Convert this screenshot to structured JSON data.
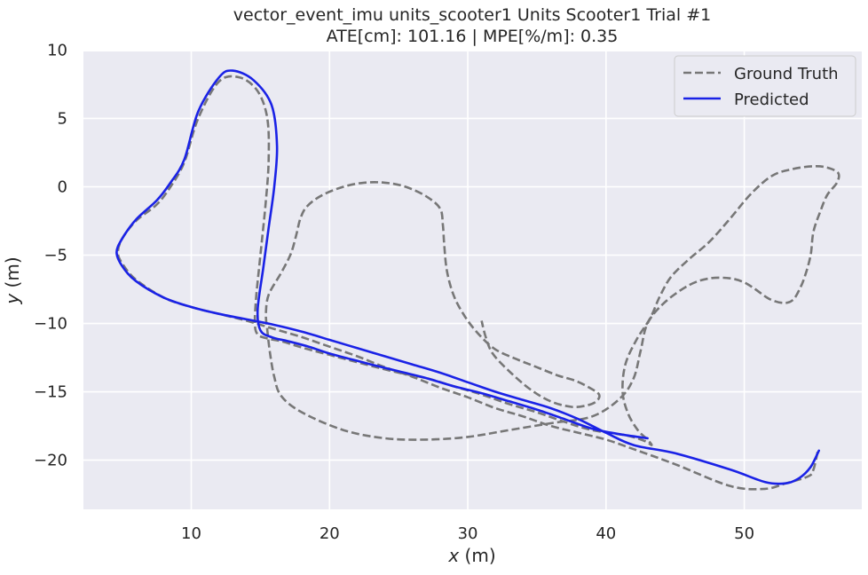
{
  "chart_data": {
    "type": "line",
    "title": "vector_event_imu units_scooter1 Units Scooter1 Trial #1",
    "subtitle": "ATE[cm]: 101.16 | MPE[%/m]: 0.35",
    "xlabel_var": "x",
    "xlabel_unit": " (m)",
    "ylabel_var": "y",
    "ylabel_unit": " (m)",
    "xlim": [
      2.2,
      58.5
    ],
    "ylim": [
      -23.6,
      9.9
    ],
    "xticks": [
      10,
      20,
      30,
      40,
      50
    ],
    "yticks": [
      10,
      5,
      0,
      -5,
      -10,
      -15,
      -20
    ],
    "xtick_labels": [
      "10",
      "20",
      "30",
      "40",
      "50"
    ],
    "ytick_labels": [
      "10",
      "5",
      "0",
      "−5",
      "−10",
      "−15",
      "−20"
    ],
    "grid": true,
    "legend_position": "top-right",
    "series": [
      {
        "name": "Ground Truth",
        "color": "#777777",
        "style": "dashed",
        "x": [
          55.3,
          55.0,
          54.6,
          53.0,
          51.5,
          49.0,
          45.0,
          42.0,
          40.0,
          38.0,
          36.0,
          34.0,
          32.0,
          30.0,
          28.0,
          26.0,
          24.0,
          22.0,
          20.0,
          18.0,
          16.0,
          14.0,
          12.0,
          10.0,
          8.0,
          6.0,
          5.0,
          4.7,
          5.0,
          6.0,
          7.5,
          8.5,
          9.5,
          10.5,
          12.0,
          13.5,
          14.8,
          15.5,
          15.6,
          15.4,
          15.0,
          14.7,
          14.6,
          14.8,
          15.5,
          16.5,
          17.5,
          18.5,
          20.0,
          21.5,
          23.0,
          25.0,
          27.0,
          29.0,
          31.0,
          33.0,
          35.0,
          37.0,
          39.0,
          41.5,
          42.8,
          43.3,
          43.0,
          42.3,
          41.6,
          41.2,
          41.4,
          42.2,
          43.2,
          43.9,
          44.7,
          46.0,
          47.5,
          49.0,
          50.5,
          52.0,
          53.5,
          55.0,
          56.0,
          56.8,
          56.7,
          56.0,
          55.5,
          55.0,
          54.8,
          54.4,
          54.0,
          53.5,
          52.8,
          51.8,
          50.8,
          50.0,
          49.0,
          47.5,
          46.0,
          44.2,
          43.0,
          42.5,
          42.0,
          41.0,
          39.0,
          36.0,
          33.0,
          30.0,
          27.0,
          24.0,
          21.0,
          18.0,
          16.5,
          16.0,
          15.7,
          15.5,
          15.4,
          15.6,
          16.5,
          17.2,
          17.6,
          17.9,
          18.4,
          19.5,
          21.0,
          22.5,
          24.0,
          25.5,
          27.0,
          28.0,
          28.2,
          28.3,
          28.5,
          29.0,
          29.8,
          30.8,
          32.0,
          33.5,
          35.0,
          36.5,
          37.8,
          38.8,
          39.5,
          39.3,
          38.6,
          37.5,
          36.0,
          34.5,
          33.0,
          31.8,
          31.3,
          31.0
        ],
        "y": [
          -19.4,
          -20.7,
          -21.2,
          -21.7,
          -22.1,
          -21.9,
          -20.3,
          -19.2,
          -18.5,
          -18.0,
          -17.5,
          -16.8,
          -16.2,
          -15.4,
          -14.7,
          -13.9,
          -13.2,
          -12.4,
          -11.7,
          -11.0,
          -10.4,
          -9.8,
          -9.3,
          -8.8,
          -8.1,
          -6.8,
          -5.6,
          -4.8,
          -3.8,
          -2.5,
          -1.3,
          0.0,
          1.8,
          5.0,
          7.7,
          8.0,
          7.0,
          5.0,
          2.0,
          -1.0,
          -5.0,
          -8.0,
          -10.0,
          -10.8,
          -11.1,
          -11.3,
          -11.6,
          -11.9,
          -12.3,
          -12.7,
          -13.1,
          -13.6,
          -14.0,
          -14.6,
          -15.2,
          -15.9,
          -16.5,
          -17.2,
          -17.8,
          -18.2,
          -18.6,
          -18.9,
          -18.5,
          -17.8,
          -16.6,
          -15.0,
          -13.0,
          -11.2,
          -9.6,
          -8.0,
          -6.6,
          -5.3,
          -4.0,
          -2.3,
          -0.5,
          0.8,
          1.3,
          1.5,
          1.4,
          1.0,
          0.3,
          -0.6,
          -1.8,
          -3.3,
          -5.0,
          -6.5,
          -7.5,
          -8.3,
          -8.5,
          -8.2,
          -7.5,
          -7.0,
          -6.7,
          -6.7,
          -7.2,
          -8.5,
          -10.0,
          -12.0,
          -14.0,
          -15.5,
          -16.8,
          -17.3,
          -17.8,
          -18.3,
          -18.5,
          -18.4,
          -17.8,
          -16.5,
          -15.3,
          -13.9,
          -12.2,
          -10.5,
          -9.3,
          -7.9,
          -6.3,
          -4.9,
          -3.5,
          -2.3,
          -1.4,
          -0.6,
          0.0,
          0.3,
          0.3,
          0.0,
          -0.7,
          -1.6,
          -2.8,
          -4.3,
          -6.2,
          -8.0,
          -9.5,
          -10.8,
          -11.9,
          -12.6,
          -13.2,
          -13.8,
          -14.2,
          -14.7,
          -15.2,
          -15.7,
          -16.0,
          -16.1,
          -15.7,
          -14.8,
          -13.5,
          -12.2,
          -11.0,
          -9.8
        ],
        "plot": "path"
      },
      {
        "name": "Predicted",
        "color": "#1a22e6",
        "style": "solid",
        "points": [
          [
            55.4,
            -19.3
          ],
          [
            54.8,
            -20.5
          ],
          [
            54.0,
            -21.3
          ],
          [
            53.0,
            -21.7
          ],
          [
            51.5,
            -21.6
          ],
          [
            49.0,
            -20.7
          ],
          [
            45.0,
            -19.5
          ],
          [
            42.0,
            -18.9
          ],
          [
            40.0,
            -18.0
          ],
          [
            38.0,
            -17.0
          ],
          [
            36.0,
            -16.2
          ],
          [
            34.0,
            -15.6
          ],
          [
            32.0,
            -15.0
          ],
          [
            30.0,
            -14.3
          ],
          [
            28.0,
            -13.6
          ],
          [
            26.0,
            -13.0
          ],
          [
            24.0,
            -12.4
          ],
          [
            22.0,
            -11.8
          ],
          [
            20.0,
            -11.2
          ],
          [
            18.0,
            -10.6
          ],
          [
            16.0,
            -10.1
          ],
          [
            14.0,
            -9.7
          ],
          [
            12.0,
            -9.3
          ],
          [
            10.0,
            -8.8
          ],
          [
            8.0,
            -8.1
          ],
          [
            6.0,
            -6.9
          ],
          [
            5.0,
            -5.8
          ],
          [
            4.6,
            -4.8
          ],
          [
            5.0,
            -3.8
          ],
          [
            6.0,
            -2.4
          ],
          [
            7.5,
            -1.0
          ],
          [
            8.5,
            0.3
          ],
          [
            9.5,
            2.0
          ],
          [
            10.5,
            5.5
          ],
          [
            12.0,
            8.0
          ],
          [
            13.0,
            8.5
          ],
          [
            14.5,
            7.8
          ],
          [
            15.8,
            6.0
          ],
          [
            16.2,
            3.0
          ],
          [
            16.0,
            0.0
          ],
          [
            15.6,
            -3.0
          ],
          [
            15.2,
            -6.0
          ],
          [
            14.8,
            -9.0
          ],
          [
            15.0,
            -10.5
          ],
          [
            15.8,
            -11.0
          ],
          [
            17.0,
            -11.3
          ],
          [
            18.5,
            -11.7
          ],
          [
            20.0,
            -12.2
          ],
          [
            21.5,
            -12.6
          ],
          [
            23.0,
            -13.0
          ],
          [
            25.0,
            -13.5
          ],
          [
            27.0,
            -14.0
          ],
          [
            29.0,
            -14.6
          ],
          [
            31.0,
            -15.1
          ],
          [
            33.0,
            -15.7
          ],
          [
            35.0,
            -16.3
          ],
          [
            37.0,
            -17.0
          ],
          [
            39.0,
            -17.7
          ],
          [
            41.0,
            -18.1
          ],
          [
            43.0,
            -18.4
          ]
        ],
        "plot": "points"
      }
    ]
  }
}
